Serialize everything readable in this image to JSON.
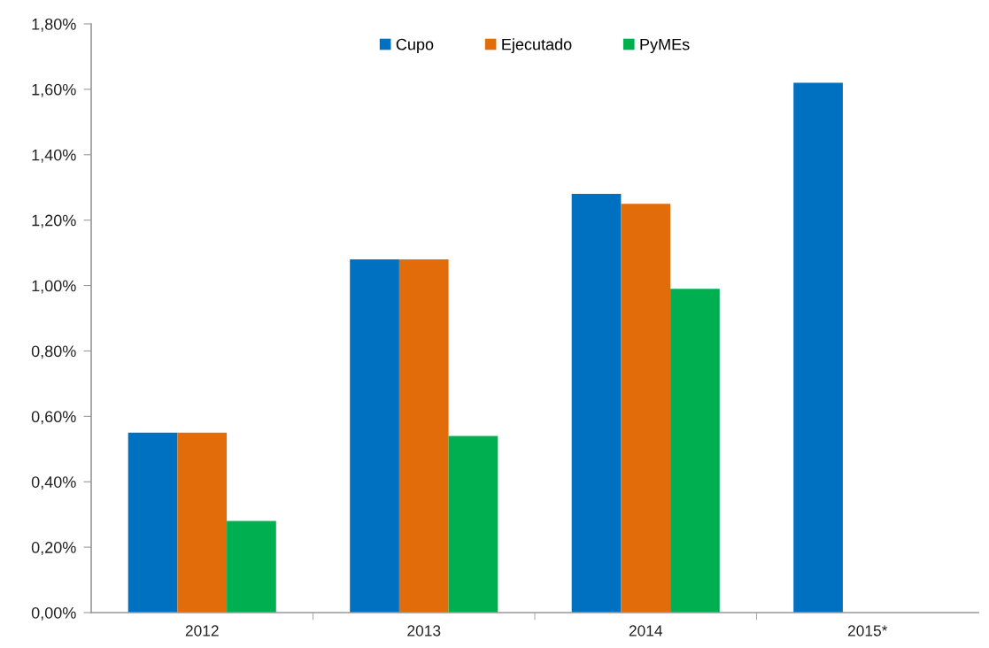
{
  "chart_data": {
    "type": "bar",
    "categories": [
      "2012",
      "2013",
      "2014",
      "2015*"
    ],
    "series": [
      {
        "name": "Cupo",
        "color": "#0070c0",
        "values": [
          0.55,
          1.08,
          1.28,
          1.62
        ]
      },
      {
        "name": "Ejecutado",
        "color": "#e36c0a",
        "values": [
          0.55,
          1.08,
          1.25,
          null
        ]
      },
      {
        "name": "PyMEs",
        "color": "#00b050",
        "values": [
          0.28,
          0.54,
          0.99,
          null
        ]
      }
    ],
    "ylim": [
      0,
      1.8
    ],
    "yticks": [
      {
        "value": 0,
        "label": "0,00%"
      },
      {
        "value": 0.2,
        "label": "0,20%"
      },
      {
        "value": 0.4,
        "label": "0,40%"
      },
      {
        "value": 0.6,
        "label": "0,60%"
      },
      {
        "value": 0.8,
        "label": "0,80%"
      },
      {
        "value": 1.0,
        "label": "1,00%"
      },
      {
        "value": 1.2,
        "label": "1,20%"
      },
      {
        "value": 1.4,
        "label": "1,40%"
      },
      {
        "value": 1.6,
        "label": "1,60%"
      },
      {
        "value": 1.8,
        "label": "1,80%"
      }
    ],
    "grid": false,
    "legend": "top"
  }
}
